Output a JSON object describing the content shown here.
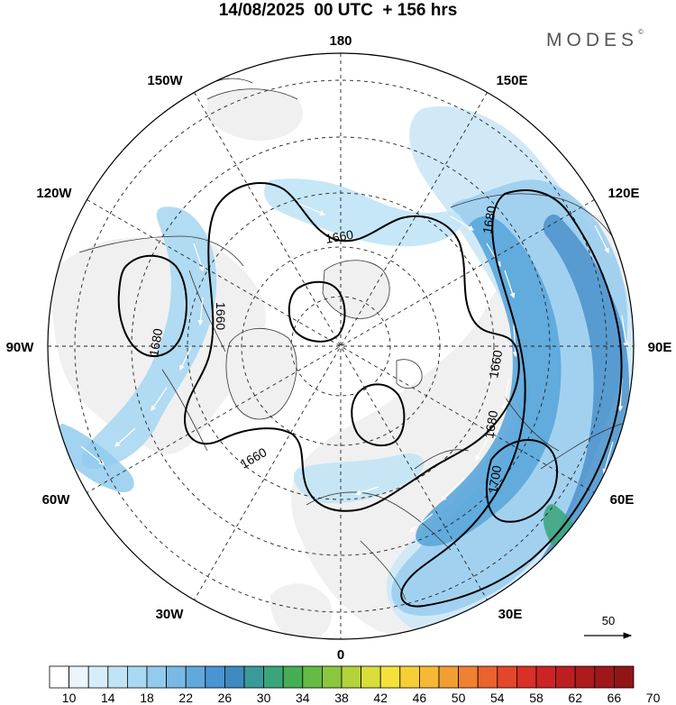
{
  "header": {
    "title": "14/08/2025  00 UTC  + 156 hrs",
    "brand": "MODES",
    "brand_mark": "©"
  },
  "map": {
    "longitude_labels": {
      "top": "180",
      "top_left": "150W",
      "top_right": "150E",
      "upper_left": "120W",
      "upper_right": "120E",
      "left": "90W",
      "right": "90E",
      "lower_left": "60W",
      "lower_right": "60E",
      "bottom_left": "30W",
      "bottom_right": "30E",
      "bottom": "0"
    },
    "contour_labels": {
      "c1": "1660",
      "c2": "1680",
      "c3": "1660",
      "c4": "1680",
      "c5": "1660",
      "c6": "1660",
      "c7": "1680",
      "c8": "1700"
    },
    "reference_vector": "50"
  },
  "colorbar": {
    "labels": [
      "10",
      "14",
      "18",
      "22",
      "26",
      "30",
      "34",
      "38",
      "42",
      "46",
      "50",
      "54",
      "58",
      "62",
      "66",
      "70"
    ],
    "colors": [
      "#ffffff",
      "#eaf6fc",
      "#d6eef9",
      "#c0e4f6",
      "#a9d8f2",
      "#92cbed",
      "#7ab9e4",
      "#63a8dc",
      "#4a95d1",
      "#3d8bbf",
      "#3a9a9a",
      "#3aa57a",
      "#45ad55",
      "#66bb44",
      "#8cc63f",
      "#b4d33b",
      "#d9de39",
      "#f4e23a",
      "#f6cf37",
      "#f6b935",
      "#f39e33",
      "#ef8130",
      "#ea632e",
      "#e3462b",
      "#d93027",
      "#cc2424",
      "#bd1f20",
      "#ad1b1d",
      "#9e181a",
      "#8f1517"
    ]
  }
}
